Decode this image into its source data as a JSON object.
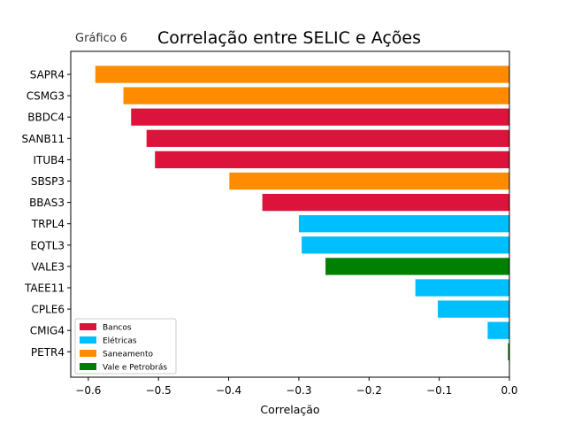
{
  "chart_data": {
    "type": "bar",
    "orientation": "horizontal",
    "title": "Correlação entre SELIC e Ações",
    "subtitle": "Gráfico 6",
    "xlabel": "Correlação",
    "ylabel": "",
    "xlim": [
      -0.625,
      0.0
    ],
    "xticks": [
      -0.6,
      -0.5,
      -0.4,
      -0.3,
      -0.2,
      -0.1,
      0.0
    ],
    "xtick_labels": [
      "−0.6",
      "−0.5",
      "−0.4",
      "−0.3",
      "−0.2",
      "−0.1",
      "0.0"
    ],
    "grid": false,
    "legend_position": "lower-left",
    "categories": [
      "SAPR4",
      "CSMG3",
      "BBDC4",
      "SANB11",
      "ITUB4",
      "SBSP3",
      "BBAS3",
      "TRPL4",
      "EQTL3",
      "VALE3",
      "TAEE11",
      "CPLE6",
      "CMIG4",
      "PETR4"
    ],
    "values": [
      -0.59,
      -0.55,
      -0.539,
      -0.517,
      -0.505,
      -0.399,
      -0.352,
      -0.3,
      -0.296,
      -0.262,
      -0.134,
      -0.102,
      -0.031,
      -0.002
    ],
    "groups": [
      "Saneamento",
      "Saneamento",
      "Bancos",
      "Bancos",
      "Bancos",
      "Saneamento",
      "Bancos",
      "Elétricas",
      "Elétricas",
      "Vale e Petrobrás",
      "Elétricas",
      "Elétricas",
      "Elétricas",
      "Vale e Petrobrás"
    ],
    "legend": [
      {
        "name": "Bancos",
        "color": "#dc143c"
      },
      {
        "name": "Elétricas",
        "color": "#00bfff"
      },
      {
        "name": "Saneamento",
        "color": "#ff8c00"
      },
      {
        "name": "Vale e Petrobrás",
        "color": "#008000"
      }
    ]
  }
}
